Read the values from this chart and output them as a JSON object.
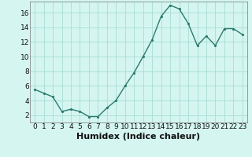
{
  "x": [
    0,
    1,
    2,
    3,
    4,
    5,
    6,
    7,
    8,
    9,
    10,
    11,
    12,
    13,
    14,
    15,
    16,
    17,
    18,
    19,
    20,
    21,
    22,
    23
  ],
  "y": [
    5.5,
    5.0,
    4.5,
    2.5,
    2.8,
    2.5,
    1.8,
    1.8,
    3.0,
    4.0,
    6.0,
    7.8,
    10.0,
    12.3,
    15.5,
    17.0,
    16.5,
    14.5,
    11.5,
    12.8,
    11.5,
    13.8,
    13.8,
    13.0
  ],
  "xlabel": "Humidex (Indice chaleur)",
  "line_color": "#2d7a6e",
  "marker_color": "#2d7a6e",
  "bg_color": "#d4f5f0",
  "grid_color": "#a8ddd6",
  "xlim": [
    -0.5,
    23.5
  ],
  "ylim": [
    1,
    17.5
  ],
  "yticks": [
    2,
    4,
    6,
    8,
    10,
    12,
    14,
    16
  ],
  "xtick_labels": [
    "0",
    "1",
    "2",
    "3",
    "4",
    "5",
    "6",
    "7",
    "8",
    "9",
    "10",
    "11",
    "12",
    "13",
    "14",
    "15",
    "16",
    "17",
    "18",
    "19",
    "20",
    "21",
    "22",
    "23"
  ],
  "xlabel_fontsize": 8,
  "tick_fontsize": 6.5,
  "linewidth": 1.0,
  "markersize": 2.5
}
